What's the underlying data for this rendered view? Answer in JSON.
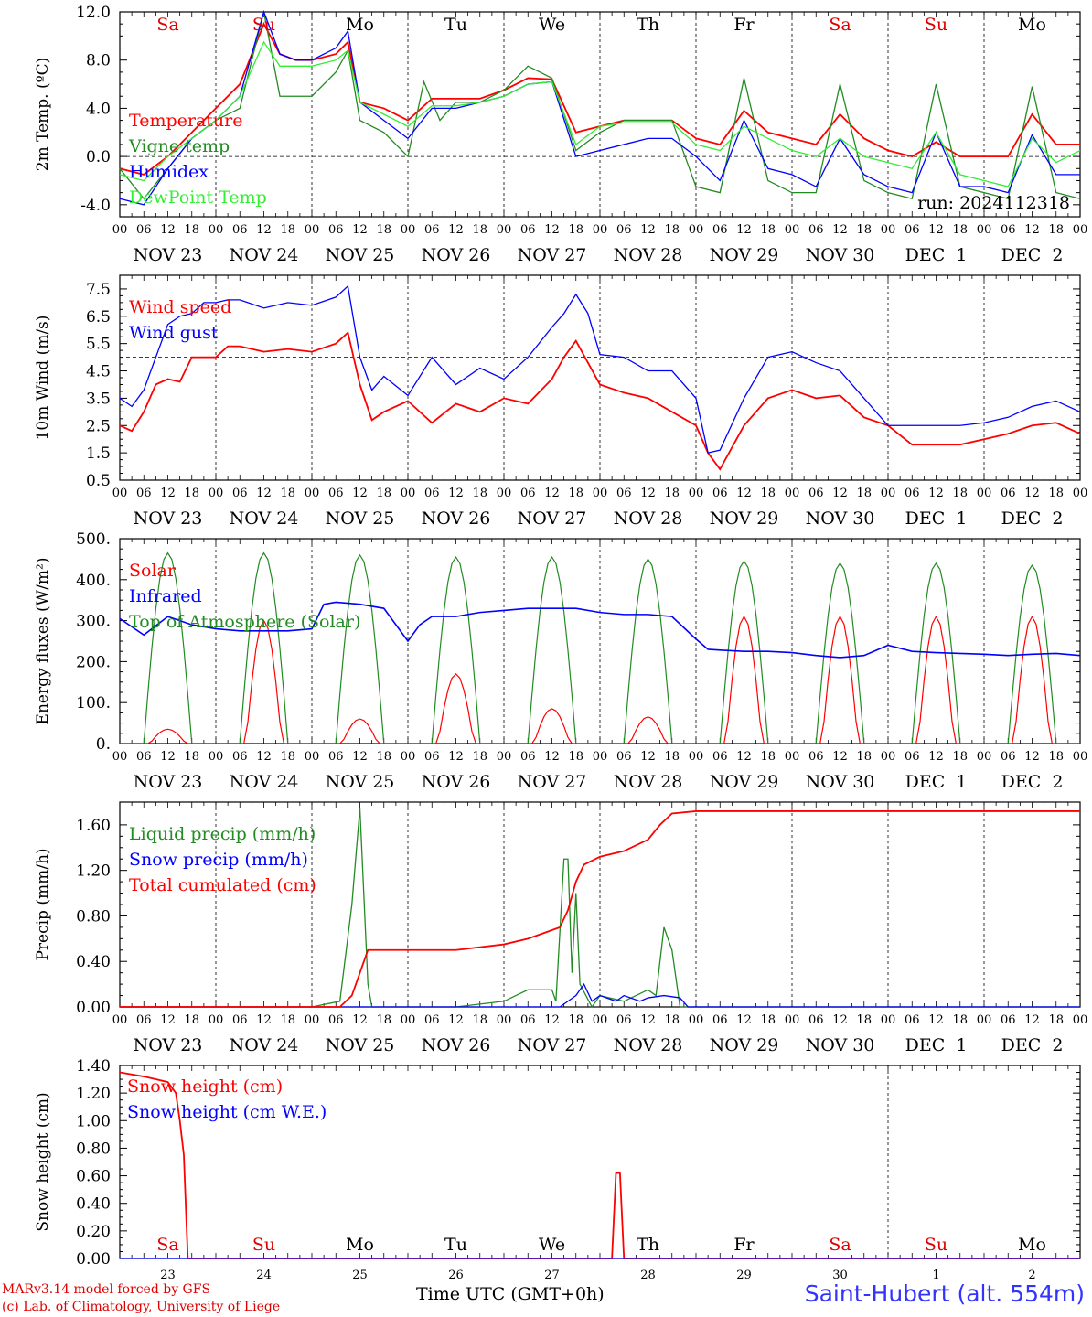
{
  "footer": {
    "credit_line1": "MARv3.14 model forced by GFS",
    "credit_line2": "(c) Lab. of Climatology, University of Liege",
    "station": "Saint-Hubert (alt. 554m)",
    "x_title": "Time UTC (GMT+0h)"
  },
  "run_label": "run: 2024112318",
  "day_names": [
    "Sa",
    "Su",
    "Mo",
    "Tu",
    "We",
    "Th",
    "Fr",
    "Sa",
    "Su",
    "Mo"
  ],
  "weekend_days": [
    0,
    1,
    7,
    8
  ],
  "date_labels": [
    "NOV 23",
    "NOV 24",
    "NOV 25",
    "NOV 26",
    "NOV 27",
    "NOV 28",
    "NOV 29",
    "NOV 30",
    "DEC  1",
    "DEC  2"
  ],
  "day_numbers": [
    "23",
    "24",
    "25",
    "26",
    "27",
    "28",
    "29",
    "30",
    "1",
    "2"
  ],
  "hour_labels": [
    "00",
    "06",
    "12",
    "18"
  ],
  "colors": {
    "red": "#ff0000",
    "green": "#228b22",
    "blue": "#0000ff",
    "lightgreen": "#33ee33",
    "text_red": "#e00000"
  },
  "chart_data": [
    {
      "type": "line",
      "ylabel": "2m Temp. (ºC)",
      "ylim": [
        -5,
        12
      ],
      "yticks": [
        -4,
        0,
        4,
        8,
        12
      ],
      "ytick_labels": [
        "-4.0",
        "0.0",
        "4.0",
        "8.0",
        "12.0"
      ],
      "ref_line": 0,
      "x_hours_range": [
        0,
        240
      ],
      "series": [
        {
          "name": "Temperature",
          "color": "red",
          "x": [
            0,
            6,
            12,
            18,
            24,
            30,
            36,
            40,
            44,
            48,
            54,
            57,
            60,
            66,
            72,
            78,
            84,
            90,
            96,
            102,
            108,
            114,
            120,
            126,
            132,
            138,
            144,
            150,
            156,
            162,
            168,
            174,
            180,
            186,
            192,
            198,
            204,
            210,
            216,
            222,
            228,
            234,
            240
          ],
          "values": [
            -1,
            -1.5,
            0,
            2,
            4,
            6,
            11,
            8.5,
            8,
            8,
            8.5,
            9.5,
            4.5,
            4,
            3,
            4.8,
            4.8,
            4.8,
            5.5,
            6.5,
            6.4,
            2,
            2.5,
            3,
            3,
            3,
            1.5,
            1,
            3.8,
            2,
            1.5,
            1,
            3.5,
            1.5,
            0.5,
            0,
            1.2,
            0,
            0,
            0,
            3.5,
            1,
            1
          ]
        },
        {
          "name": "Vigne temp",
          "color": "green",
          "x": [
            0,
            6,
            12,
            18,
            24,
            30,
            36,
            40,
            44,
            48,
            54,
            57,
            60,
            66,
            72,
            76,
            80,
            84,
            90,
            96,
            102,
            108,
            114,
            120,
            126,
            132,
            138,
            144,
            150,
            156,
            162,
            168,
            174,
            180,
            186,
            192,
            198,
            204,
            210,
            216,
            222,
            228,
            234,
            240
          ],
          "values": [
            -1,
            -3.5,
            -1,
            1.5,
            3,
            4,
            12,
            5,
            5,
            5,
            7,
            8.8,
            3,
            2,
            0,
            6.2,
            3,
            4.5,
            4.5,
            5.5,
            7.5,
            6.5,
            0.5,
            2,
            3,
            3,
            3,
            -2.5,
            -3,
            6.5,
            -2,
            -3,
            -3,
            6,
            -2,
            -3,
            -3.5,
            6,
            -2.5,
            -3,
            -3.5,
            5.8,
            -3,
            -3.5
          ]
        },
        {
          "name": "Humidex",
          "color": "blue",
          "x": [
            0,
            6,
            12,
            18,
            24,
            30,
            36,
            40,
            44,
            48,
            54,
            57,
            60,
            66,
            72,
            78,
            84,
            90,
            96,
            102,
            108,
            114,
            120,
            126,
            132,
            138,
            144,
            150,
            156,
            162,
            168,
            174,
            180,
            186,
            192,
            198,
            204,
            210,
            216,
            222,
            228,
            234,
            240
          ],
          "values": [
            -3.5,
            -4,
            -1,
            1.5,
            3,
            5,
            12,
            8.5,
            8,
            8,
            9,
            10.4,
            4.5,
            3,
            1.5,
            4,
            4,
            4.5,
            5,
            6,
            6.2,
            0,
            0.5,
            1,
            1.5,
            1.5,
            0,
            -2,
            3,
            -1,
            -1.5,
            -2.5,
            1.5,
            -1.5,
            -2.5,
            -3,
            2,
            -2.5,
            -2.5,
            -3,
            1.8,
            -1.5,
            -1.5
          ]
        },
        {
          "name": "DewPoint Temp",
          "color": "lightgreen",
          "x": [
            0,
            6,
            12,
            18,
            24,
            30,
            36,
            40,
            44,
            48,
            54,
            57,
            60,
            66,
            72,
            78,
            84,
            90,
            96,
            102,
            108,
            114,
            120,
            126,
            132,
            138,
            144,
            150,
            156,
            162,
            168,
            174,
            180,
            186,
            192,
            198,
            204,
            210,
            216,
            222,
            228,
            234,
            240
          ],
          "values": [
            -1.5,
            -2,
            0,
            1.5,
            3,
            5,
            9.5,
            7.5,
            7.5,
            7.5,
            8,
            8.8,
            4.5,
            3.5,
            2.5,
            4.2,
            4.2,
            4.5,
            5,
            6,
            6.2,
            1,
            2.5,
            2.8,
            2.8,
            2.8,
            1,
            0.5,
            2.5,
            1.5,
            0.5,
            0,
            1.5,
            0,
            -0.5,
            -1,
            2,
            -1.5,
            -2,
            -2.5,
            1.5,
            -0.5,
            0.5
          ]
        }
      ]
    },
    {
      "type": "line",
      "ylabel": "10m Wind (m/s)",
      "ylim": [
        0.5,
        8
      ],
      "yticks": [
        0.5,
        1.5,
        2.5,
        3.5,
        4.5,
        5.5,
        6.5,
        7.5
      ],
      "ytick_labels": [
        "0.5",
        "1.5",
        "2.5",
        "3.5",
        "4.5",
        "5.5",
        "6.5",
        "7.5"
      ],
      "ref_line": 5,
      "x_hours_range": [
        0,
        240
      ],
      "series": [
        {
          "name": "Wind speed",
          "color": "red",
          "x": [
            0,
            3,
            6,
            9,
            12,
            15,
            18,
            21,
            24,
            27,
            30,
            36,
            42,
            48,
            54,
            57,
            60,
            63,
            66,
            72,
            78,
            84,
            90,
            96,
            102,
            108,
            111,
            114,
            120,
            126,
            132,
            138,
            144,
            147,
            150,
            156,
            162,
            168,
            174,
            180,
            186,
            192,
            198,
            204,
            210,
            216,
            222,
            228,
            234,
            240
          ],
          "values": [
            2.5,
            2.3,
            3,
            4,
            4.2,
            4.1,
            5,
            5,
            5,
            5.4,
            5.4,
            5.2,
            5.3,
            5.2,
            5.5,
            5.9,
            4,
            2.7,
            3,
            3.4,
            2.6,
            3.3,
            3,
            3.5,
            3.3,
            4.2,
            5,
            5.6,
            4,
            3.7,
            3.5,
            3,
            2.5,
            1.5,
            0.9,
            2.5,
            3.5,
            3.8,
            3.5,
            3.6,
            2.8,
            2.5,
            1.8,
            1.8,
            1.8,
            2,
            2.2,
            2.5,
            2.6,
            2.2
          ]
        },
        {
          "name": "Wind gust",
          "color": "blue",
          "x": [
            0,
            3,
            6,
            9,
            12,
            15,
            18,
            21,
            24,
            27,
            30,
            36,
            42,
            48,
            54,
            57,
            60,
            63,
            66,
            72,
            78,
            84,
            90,
            96,
            102,
            108,
            111,
            114,
            117,
            120,
            126,
            132,
            138,
            144,
            147,
            150,
            156,
            162,
            168,
            174,
            180,
            186,
            192,
            198,
            204,
            210,
            216,
            222,
            228,
            234,
            240
          ],
          "values": [
            3.5,
            3.2,
            3.8,
            5,
            6.2,
            6.5,
            6.6,
            7,
            7,
            7.1,
            7.1,
            6.8,
            7,
            6.9,
            7.2,
            7.6,
            5,
            3.8,
            4.3,
            3.6,
            5,
            4,
            4.6,
            4.2,
            5,
            6.1,
            6.6,
            7.3,
            6.6,
            5.1,
            5,
            4.5,
            4.5,
            3.5,
            1.5,
            1.6,
            3.5,
            5,
            5.2,
            4.8,
            4.5,
            3.5,
            2.5,
            2.5,
            2.5,
            2.5,
            2.6,
            2.8,
            3.2,
            3.4,
            3
          ]
        }
      ]
    },
    {
      "type": "line",
      "ylabel": "Energy fluxes (W/m²)",
      "ylim": [
        0,
        500
      ],
      "yticks": [
        0,
        100,
        200,
        300,
        400,
        500
      ],
      "ytick_labels": [
        "0.",
        "100.",
        "200.",
        "300.",
        "400.",
        "500."
      ],
      "x_hours_range": [
        0,
        240
      ],
      "daily_peak_solar": [
        35,
        300,
        60,
        170,
        85,
        65,
        310,
        310,
        310,
        310
      ],
      "daily_peak_toa": [
        465,
        465,
        460,
        455,
        455,
        450,
        445,
        440,
        440,
        435
      ],
      "series": [
        {
          "name": "Solar",
          "color": "red"
        },
        {
          "name": "Infrared",
          "color": "blue",
          "x": [
            0,
            6,
            12,
            18,
            24,
            30,
            36,
            42,
            48,
            51,
            54,
            60,
            66,
            72,
            75,
            78,
            84,
            90,
            96,
            102,
            108,
            114,
            120,
            126,
            132,
            138,
            144,
            147,
            150,
            156,
            162,
            168,
            174,
            180,
            186,
            192,
            198,
            204,
            210,
            216,
            222,
            228,
            234,
            240
          ],
          "values": [
            305,
            265,
            310,
            290,
            280,
            275,
            275,
            275,
            280,
            340,
            345,
            340,
            330,
            250,
            290,
            310,
            310,
            320,
            325,
            330,
            330,
            330,
            320,
            315,
            315,
            310,
            255,
            230,
            228,
            225,
            225,
            222,
            215,
            210,
            215,
            240,
            225,
            222,
            220,
            218,
            215,
            218,
            220,
            215
          ]
        },
        {
          "name": "Top of Atmosphere (Solar)",
          "color": "green"
        }
      ]
    },
    {
      "type": "line",
      "ylabel": "Precip (mm/h)",
      "ylim": [
        0,
        1.8
      ],
      "yticks": [
        0,
        0.4,
        0.8,
        1.2,
        1.6
      ],
      "ytick_labels": [
        "0.00",
        "0.40",
        "0.80",
        "1.20",
        "1.60"
      ],
      "x_hours_range": [
        0,
        240
      ],
      "series": [
        {
          "name": "Liquid precip (mm/h)",
          "color": "green",
          "x": [
            0,
            48,
            55,
            58,
            60,
            62,
            63,
            64,
            72,
            84,
            96,
            102,
            108,
            109,
            111,
            112,
            113,
            114,
            115,
            118,
            120,
            126,
            132,
            134,
            136,
            138,
            140,
            144,
            240
          ],
          "values": [
            0,
            0,
            0.05,
            0.9,
            1.75,
            0.2,
            0,
            0,
            0,
            0,
            0.05,
            0.15,
            0.15,
            0.05,
            1.3,
            1.3,
            0.3,
            1.0,
            0.2,
            0,
            0.1,
            0.05,
            0.15,
            0.1,
            0.7,
            0.5,
            0,
            0,
            0
          ]
        },
        {
          "name": "Snow precip (mm/h)",
          "color": "blue",
          "x": [
            0,
            110,
            112,
            114,
            116,
            118,
            120,
            124,
            126,
            130,
            132,
            136,
            140,
            142,
            144,
            240
          ],
          "values": [
            0,
            0,
            0.05,
            0.1,
            0.2,
            0.05,
            0.1,
            0.05,
            0.1,
            0.05,
            0.08,
            0.1,
            0.08,
            0,
            0,
            0
          ]
        },
        {
          "name": "Total cumulated (cm)",
          "color": "red",
          "x": [
            0,
            55,
            58,
            60,
            62,
            84,
            96,
            102,
            106,
            110,
            112,
            114,
            116,
            120,
            126,
            132,
            135,
            138,
            144,
            240
          ],
          "values": [
            0,
            0,
            0.1,
            0.3,
            0.5,
            0.5,
            0.55,
            0.6,
            0.65,
            0.7,
            0.85,
            1.1,
            1.25,
            1.32,
            1.37,
            1.47,
            1.6,
            1.7,
            1.72,
            1.72
          ]
        }
      ]
    },
    {
      "type": "line",
      "ylabel": "Snow height (cm)",
      "ylim": [
        0,
        1.4
      ],
      "yticks": [
        0,
        0.2,
        0.4,
        0.6,
        0.8,
        1.0,
        1.2,
        1.4
      ],
      "ytick_labels": [
        "0.00",
        "0.20",
        "0.40",
        "0.60",
        "0.80",
        "1.00",
        "1.20",
        "1.40"
      ],
      "x_hours_range": [
        0,
        240
      ],
      "series": [
        {
          "name": "Snow height (cm)",
          "color": "red",
          "x": [
            0,
            6,
            12,
            14,
            15,
            16,
            17,
            123,
            124,
            125,
            126,
            240
          ],
          "values": [
            1.35,
            1.32,
            1.28,
            1.2,
            1.0,
            0.75,
            0,
            0,
            0.62,
            0.62,
            0,
            0
          ]
        },
        {
          "name": "Snow height (cm W.E.)",
          "color": "blue",
          "x": [
            0,
            240
          ],
          "values": [
            0,
            0
          ]
        }
      ]
    }
  ]
}
